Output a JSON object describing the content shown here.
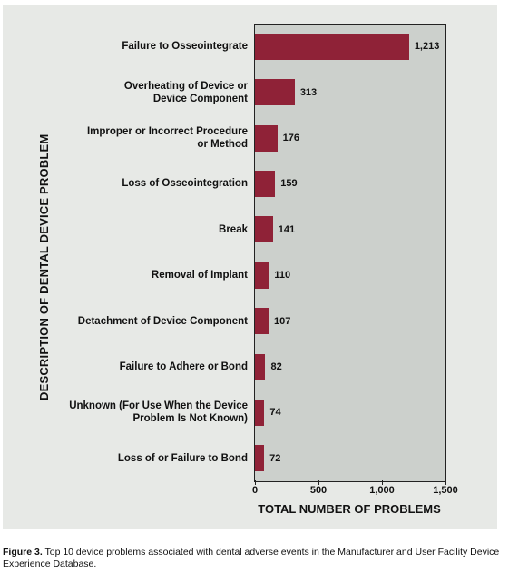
{
  "chart_data": {
    "type": "bar",
    "orientation": "horizontal",
    "categories": [
      "Failure to Osseointegrate",
      "Overheating of Device or\nDevice Component",
      "Improper or Incorrect Procedure\nor Method",
      "Loss of Osseointegration",
      "Break",
      "Removal of Implant",
      "Detachment of Device Component",
      "Failure to Adhere or Bond",
      "Unknown (For Use When the Device\nProblem Is Not Known)",
      "Loss of or Failure to Bond"
    ],
    "values": [
      1213,
      313,
      176,
      159,
      141,
      110,
      107,
      82,
      74,
      72
    ],
    "value_labels": [
      "1,213",
      "313",
      "176",
      "159",
      "141",
      "110",
      "107",
      "82",
      "74",
      "72"
    ],
    "xlabel": "TOTAL NUMBER OF PROBLEMS",
    "ylabel": "DESCRIPTION OF DENTAL DEVICE PROBLEM",
    "xlim": [
      0,
      1500
    ],
    "xticks": [
      0,
      500,
      1000,
      1500
    ],
    "xtick_labels": [
      "0",
      "500",
      "1,000",
      "1,500"
    ],
    "grid": false,
    "bar_color": "#8f2237"
  },
  "caption": {
    "label": "Figure 3.",
    "text": " Top 10 device problems associated with dental adverse events in the Manufacturer and User Facility Device Experience Database."
  }
}
